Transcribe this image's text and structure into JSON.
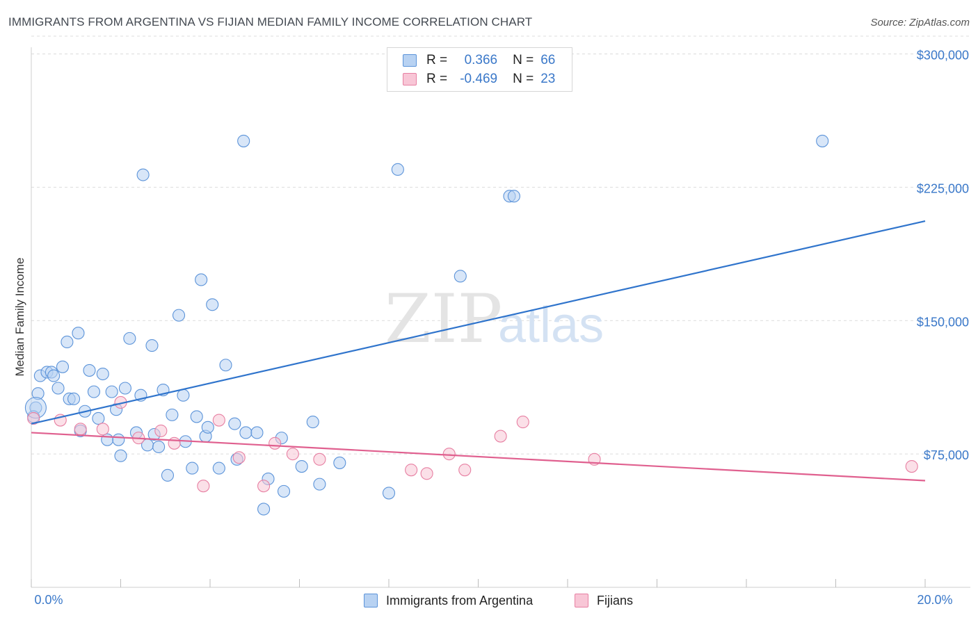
{
  "title": "IMMIGRANTS FROM ARGENTINA VS FIJIAN MEDIAN FAMILY INCOME CORRELATION CHART",
  "source": "Source: ZipAtlas.com",
  "watermark": {
    "zip": "ZIP",
    "atlas": "atlas"
  },
  "legend": {
    "series1": {
      "r_label": "R =",
      "r_value": "0.366",
      "n_label": "N =",
      "n_value": "66"
    },
    "series2": {
      "r_label": "R =",
      "r_value": "-0.469",
      "n_label": "N =",
      "n_value": "23"
    }
  },
  "bottom_legend": {
    "series1": "Immigrants from Argentina",
    "series2": "Fijians"
  },
  "colors": {
    "blue": "#5b93d9",
    "blue_fill": "#b8d2f2",
    "blue_line": "#2f74cc",
    "pink": "#e77fa2",
    "pink_fill": "#f8c6d6",
    "pink_line": "#e0608f",
    "axis_label": "#3a78c9",
    "grid": "#dcdcdc"
  },
  "chart_data": {
    "type": "scatter",
    "title": "IMMIGRANTS FROM ARGENTINA VS FIJIAN MEDIAN FAMILY INCOME CORRELATION CHART",
    "xlabel": "",
    "ylabel": "Median Family Income",
    "xlim": [
      0,
      20
    ],
    "ylim": [
      0,
      310000
    ],
    "x_tick_labels": [
      "0.0%",
      "20.0%"
    ],
    "y_ticks": [
      75000,
      150000,
      225000,
      300000
    ],
    "y_tick_labels": [
      "$75,000",
      "$150,000",
      "$225,000",
      "$300,000"
    ],
    "series": [
      {
        "name": "Immigrants from Argentina",
        "color": "#5b93d9",
        "trend": {
          "x": [
            0,
            20
          ],
          "y": [
            92000,
            206000
          ]
        },
        "points": [
          [
            0.1,
            101000
          ],
          [
            0.15,
            109000
          ],
          [
            0.2,
            119000
          ],
          [
            0.35,
            121000
          ],
          [
            0.45,
            121000
          ],
          [
            0.5,
            119000
          ],
          [
            0.6,
            112000
          ],
          [
            0.7,
            124000
          ],
          [
            0.8,
            138000
          ],
          [
            0.85,
            106000
          ],
          [
            0.95,
            106000
          ],
          [
            1.05,
            143000
          ],
          [
            1.1,
            88000
          ],
          [
            1.2,
            99000
          ],
          [
            1.3,
            122000
          ],
          [
            1.4,
            110000
          ],
          [
            1.5,
            95000
          ],
          [
            1.6,
            120000
          ],
          [
            1.7,
            83000
          ],
          [
            1.8,
            110000
          ],
          [
            1.9,
            100000
          ],
          [
            1.95,
            83000
          ],
          [
            2.0,
            74000
          ],
          [
            2.1,
            112000
          ],
          [
            2.2,
            140000
          ],
          [
            2.35,
            87000
          ],
          [
            2.45,
            108000
          ],
          [
            2.5,
            232000
          ],
          [
            2.6,
            80000
          ],
          [
            2.7,
            136000
          ],
          [
            2.75,
            86000
          ],
          [
            2.85,
            79000
          ],
          [
            2.95,
            111000
          ],
          [
            3.05,
            63000
          ],
          [
            3.15,
            97000
          ],
          [
            3.3,
            153000
          ],
          [
            3.4,
            108000
          ],
          [
            3.45,
            82000
          ],
          [
            3.6,
            67000
          ],
          [
            3.7,
            96000
          ],
          [
            3.8,
            173000
          ],
          [
            3.9,
            85000
          ],
          [
            3.95,
            90000
          ],
          [
            4.05,
            159000
          ],
          [
            4.2,
            67000
          ],
          [
            4.35,
            125000
          ],
          [
            4.55,
            92000
          ],
          [
            4.6,
            72000
          ],
          [
            4.75,
            251000
          ],
          [
            4.8,
            87000
          ],
          [
            5.05,
            87000
          ],
          [
            5.2,
            44000
          ],
          [
            5.3,
            61000
          ],
          [
            5.6,
            84000
          ],
          [
            5.65,
            54000
          ],
          [
            6.05,
            68000
          ],
          [
            6.3,
            93000
          ],
          [
            6.45,
            58000
          ],
          [
            6.9,
            70000
          ],
          [
            8.0,
            53000
          ],
          [
            8.2,
            235000
          ],
          [
            9.6,
            175000
          ],
          [
            10.7,
            220000
          ],
          [
            10.8,
            220000
          ],
          [
            17.7,
            251000
          ],
          [
            0.05,
            96000
          ]
        ]
      },
      {
        "name": "Fijians",
        "color": "#e77fa2",
        "trend": {
          "x": [
            0,
            20
          ],
          "y": [
            87000,
            60000
          ]
        },
        "points": [
          [
            0.05,
            95000
          ],
          [
            0.65,
            94000
          ],
          [
            1.1,
            89000
          ],
          [
            1.6,
            89000
          ],
          [
            2.0,
            104000
          ],
          [
            2.4,
            84000
          ],
          [
            2.9,
            88000
          ],
          [
            3.2,
            81000
          ],
          [
            3.85,
            57000
          ],
          [
            4.2,
            94000
          ],
          [
            4.65,
            73000
          ],
          [
            5.2,
            57000
          ],
          [
            5.45,
            81000
          ],
          [
            5.85,
            75000
          ],
          [
            6.45,
            72000
          ],
          [
            8.5,
            66000
          ],
          [
            8.85,
            64000
          ],
          [
            9.35,
            75000
          ],
          [
            9.7,
            66000
          ],
          [
            10.5,
            85000
          ],
          [
            11.0,
            93000
          ],
          [
            12.6,
            72000
          ],
          [
            19.7,
            68000
          ]
        ]
      }
    ]
  }
}
